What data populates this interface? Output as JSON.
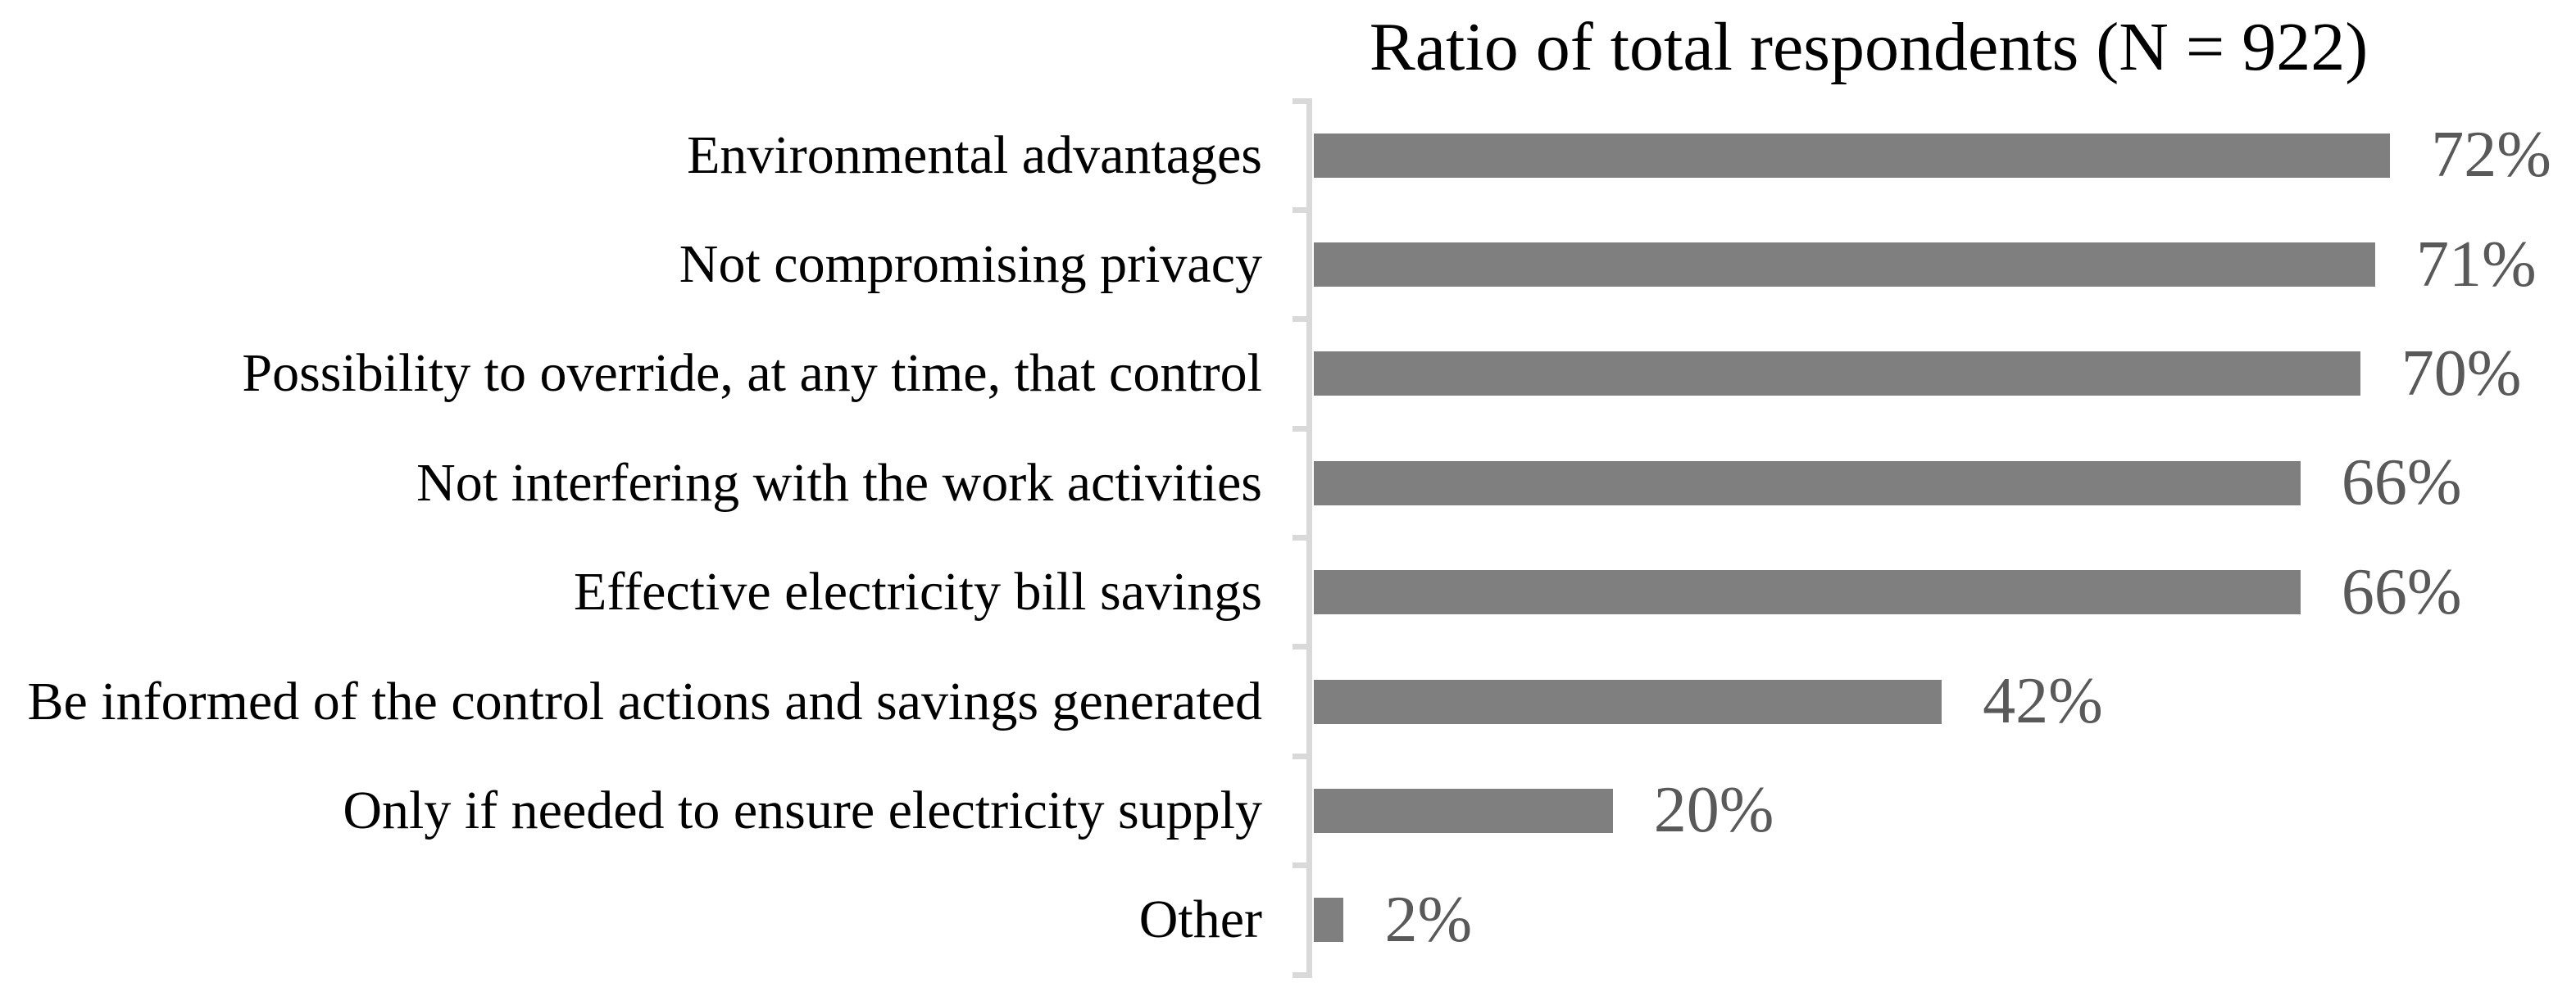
{
  "figure": {
    "background_color": "#ffffff",
    "title": "Ratio of total respondents (N = 922)"
  },
  "chart_data": {
    "type": "bar",
    "orientation": "horizontal",
    "title": "Ratio of total respondents (N = 922)",
    "xlabel": "",
    "ylabel": "",
    "categories": [
      "Environmental advantages",
      "Not compromising privacy",
      "Possibility to override, at any time, that control",
      "Not interfering with the work activities",
      "Effective electricity bill savings",
      "Be informed of the control actions and savings generated",
      "Only if needed to ensure electricity supply",
      "Other"
    ],
    "values": [
      72,
      71,
      70,
      66,
      66,
      42,
      20,
      2
    ],
    "value_labels": [
      "72%",
      "71%",
      "70%",
      "66%",
      "66%",
      "42%",
      "20%",
      "2%"
    ],
    "value_label_format": "0%",
    "xlim": [
      0,
      84
    ],
    "gridlines": false,
    "legend_position": "none",
    "x_axis_ticks_visible": false,
    "bar_color": "#7f7f7f",
    "value_label_color": "#595959",
    "axis_line_color": "#d9d9d9",
    "category_label_color": "#000000",
    "title_color": "#000000"
  }
}
